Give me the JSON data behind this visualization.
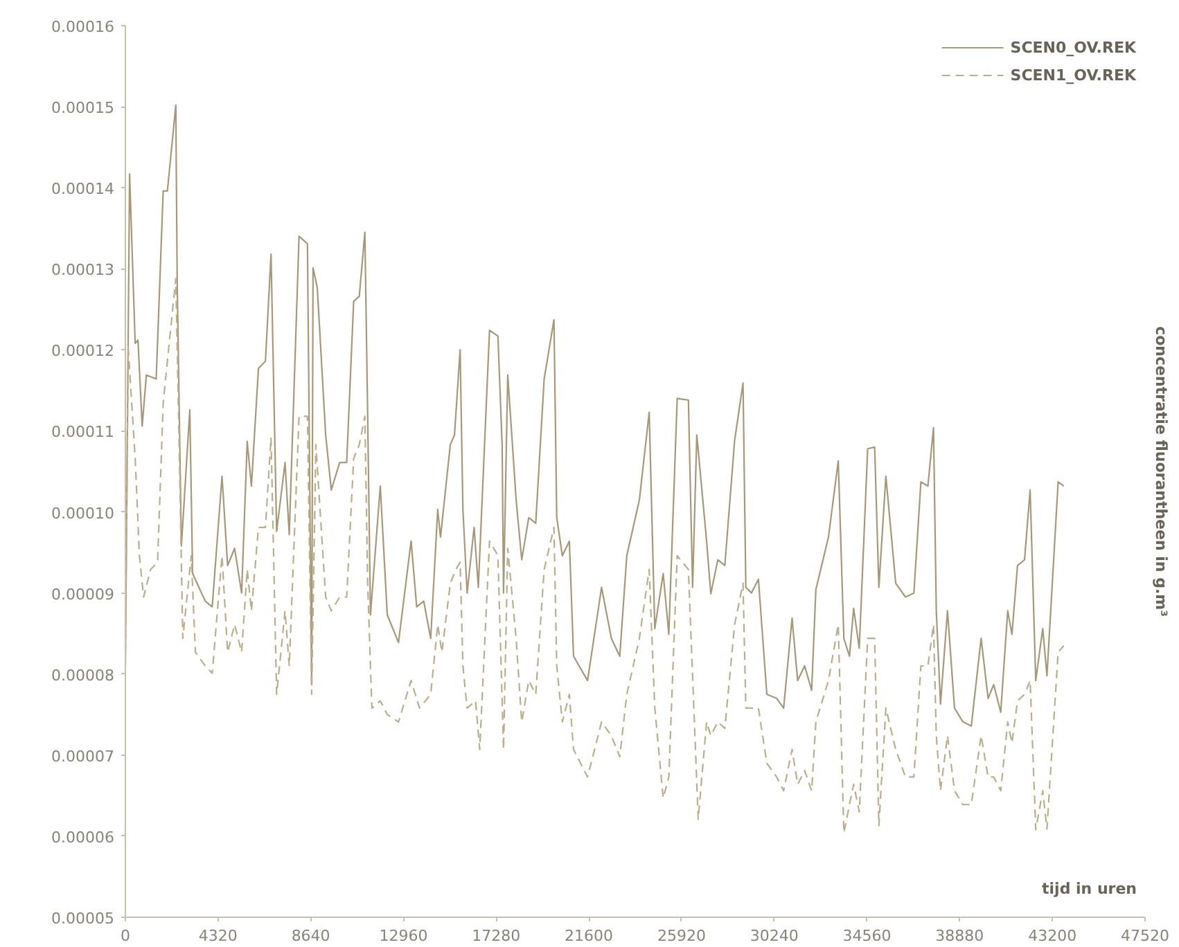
{
  "chart_data": {
    "type": "line",
    "xlabel": "tijd in uren",
    "ylabel": "concentratie fluorantheen in g.m³",
    "xlim": [
      0,
      47520
    ],
    "xticks": [
      0,
      4320,
      8640,
      12960,
      17280,
      21600,
      25920,
      30240,
      34560,
      38880,
      43200,
      47520
    ],
    "ylim": [
      5e-05,
      0.00016
    ],
    "yticks": [
      {
        "value": 5e-05,
        "label": "0.00005"
      },
      {
        "value": 6e-05,
        "label": "0.00006"
      },
      {
        "value": 7e-05,
        "label": "0.00007"
      },
      {
        "value": 8e-05,
        "label": "0.00008"
      },
      {
        "value": 9e-05,
        "label": "0.00009"
      },
      {
        "value": 0.0001,
        "label": "0.00010"
      },
      {
        "value": 0.00011,
        "label": "0.00011"
      },
      {
        "value": 0.00012,
        "label": "0.00012"
      },
      {
        "value": 0.00013,
        "label": "0.00013"
      },
      {
        "value": 0.00014,
        "label": "0.00014"
      },
      {
        "value": 0.00015,
        "label": "0.00015"
      },
      {
        "value": 0.00016,
        "label": "0.00016"
      }
    ],
    "grid": false,
    "legend": "top right",
    "marker": "none",
    "series": [
      {
        "name": "SCEN0_OV.REK",
        "color": "#a89878",
        "line_style": "solid",
        "x": [
          0,
          196,
          457,
          587,
          783,
          979,
          1436,
          1762,
          1958,
          2350,
          2415,
          2611,
          3002,
          3133,
          3720,
          4047,
          4504,
          4765,
          5091,
          5417,
          5678,
          5874,
          6201,
          6527,
          6788,
          7049,
          7441,
          7637,
          8093,
          8485,
          8681,
          8746,
          8942,
          9334,
          9595,
          9986,
          10313,
          10639,
          10900,
          11161,
          11292,
          11422,
          11879,
          12205,
          12728,
          13315,
          13576,
          13903,
          14229,
          14555,
          14686,
          15143,
          15338,
          15600,
          15730,
          15926,
          16252,
          16448,
          16970,
          17362,
          17558,
          17623,
          17819,
          18210,
          18471,
          18798,
          19124,
          19516,
          19973,
          20103,
          20364,
          20691,
          20886,
          21539,
          22192,
          22649,
          23040,
          23367,
          23954,
          24411,
          24672,
          25064,
          25325,
          25716,
          26239,
          26434,
          26630,
          27087,
          27283,
          27609,
          27936,
          28392,
          28784,
          28915,
          29176,
          29502,
          29894,
          30351,
          30677,
          31069,
          31330,
          31656,
          31982,
          32178,
          32766,
          33222,
          33484,
          33745,
          33940,
          34201,
          34593,
          34919,
          35115,
          35442,
          35899,
          36355,
          36747,
          37073,
          37400,
          37661,
          37791,
          37987,
          38313,
          38640,
          39032,
          39423,
          39880,
          40206,
          40467,
          40794,
          41120,
          41316,
          41577,
          41903,
          42164,
          42426,
          42752,
          42948,
          43470,
          43731
        ],
        "values": [
          8.1e-05,
          0.0001417,
          0.0001208,
          0.0001212,
          0.0001106,
          0.0001169,
          0.0001164,
          0.0001396,
          0.0001396,
          0.0001502,
          0.0001283,
          9.58e-05,
          0.0001126,
          9.24e-05,
          8.9e-05,
          8.83e-05,
          0.0001044,
          9.34e-05,
          9.55e-05,
          9e-05,
          0.0001087,
          0.0001032,
          0.0001177,
          0.0001186,
          0.0001318,
          9.76e-05,
          0.0001061,
          9.72e-05,
          0.000134,
          0.0001331,
          7.87e-05,
          0.0001301,
          0.0001277,
          0.0001095,
          0.0001027,
          0.0001061,
          0.0001061,
          0.000126,
          0.0001266,
          0.0001345,
          0.0001118,
          8.73e-05,
          0.0001032,
          8.73e-05,
          8.39e-05,
          9.64e-05,
          8.83e-05,
          8.9e-05,
          8.44e-05,
          0.0001003,
          9.69e-05,
          0.0001083,
          0.0001095,
          0.00012,
          0.0001003,
          9e-05,
          9.81e-05,
          9.07e-05,
          0.0001224,
          0.0001217,
          0.0001083,
          9e-05,
          0.0001169,
          0.0001015,
          9.41e-05,
          9.93e-05,
          9.86e-05,
          0.0001164,
          0.0001237,
          9.93e-05,
          9.46e-05,
          9.64e-05,
          8.22e-05,
          7.92e-05,
          9.07e-05,
          8.44e-05,
          8.22e-05,
          9.46e-05,
          0.0001015,
          0.0001123,
          8.56e-05,
          9.24e-05,
          8.49e-05,
          0.000114,
          0.0001138,
          9.07e-05,
          0.0001095,
          9.64e-05,
          8.99e-05,
          9.41e-05,
          9.34e-05,
          0.0001088,
          0.0001159,
          9.07e-05,
          9e-05,
          9.17e-05,
          7.75e-05,
          7.7e-05,
          7.58e-05,
          8.69e-05,
          7.92e-05,
          8.1e-05,
          7.8e-05,
          9.04e-05,
          9.69e-05,
          0.0001063,
          8.44e-05,
          8.22e-05,
          8.81e-05,
          8.32e-05,
          0.0001078,
          0.000108,
          9.07e-05,
          0.0001044,
          9.12e-05,
          8.95e-05,
          9e-05,
          0.0001037,
          0.0001032,
          0.0001104,
          8.78e-05,
          7.63e-05,
          8.78e-05,
          7.58e-05,
          7.41e-05,
          7.36e-05,
          8.44e-05,
          7.7e-05,
          7.87e-05,
          7.53e-05,
          8.78e-05,
          8.49e-05,
          9.34e-05,
          9.41e-05,
          0.0001027,
          7.92e-05,
          8.56e-05,
          7.98e-05,
          0.0001037,
          0.0001032
        ]
      },
      {
        "name": "SCEN1_OV.REK",
        "color": "#bcae88",
        "line_style": "dashed",
        "x": [
          0,
          131,
          457,
          653,
          849,
          1175,
          1501,
          1762,
          2089,
          2350,
          2480,
          2676,
          3068,
          3264,
          3720,
          4047,
          4504,
          4765,
          5091,
          5417,
          5678,
          5874,
          6201,
          6527,
          6788,
          7049,
          7441,
          7637,
          8093,
          8485,
          8681,
          8877,
          9334,
          9595,
          9986,
          10313,
          10639,
          10900,
          11161,
          11292,
          11488,
          11879,
          12205,
          12728,
          13315,
          13707,
          14229,
          14555,
          14751,
          15143,
          15404,
          15600,
          15730,
          15926,
          16318,
          16513,
          16970,
          17362,
          17623,
          17819,
          18210,
          18471,
          18798,
          19124,
          19516,
          19973,
          20103,
          20364,
          20691,
          20886,
          21539,
          22192,
          22649,
          23040,
          23367,
          23954,
          24411,
          24672,
          25064,
          25325,
          25716,
          26239,
          26695,
          27087,
          27283,
          27609,
          27936,
          28392,
          28784,
          28915,
          29176,
          29502,
          29894,
          30351,
          30677,
          31069,
          31330,
          31656,
          31982,
          32178,
          32766,
          33222,
          33484,
          33745,
          33940,
          34201,
          34593,
          34919,
          35115,
          35442,
          35899,
          36355,
          36747,
          37073,
          37400,
          37661,
          37791,
          37987,
          38313,
          38640,
          39032,
          39423,
          39880,
          40206,
          40467,
          40794,
          41120,
          41316,
          41577,
          41903,
          42164,
          42426,
          42752,
          42948,
          43470,
          43731
        ],
        "values": [
          8.1e-05,
          0.0001203,
          0.0001066,
          9.46e-05,
          8.95e-05,
          9.29e-05,
          9.38e-05,
          0.0001135,
          0.000122,
          0.0001288,
          0.0001118,
          8.44e-05,
          9.46e-05,
          8.27e-05,
          8.1e-05,
          8.01e-05,
          9.46e-05,
          8.27e-05,
          8.61e-05,
          8.27e-05,
          9.29e-05,
          8.78e-05,
          9.81e-05,
          9.81e-05,
          0.0001092,
          7.75e-05,
          8.78e-05,
          8.1e-05,
          0.0001118,
          0.0001118,
          7.75e-05,
          0.0001083,
          8.95e-05,
          8.78e-05,
          8.95e-05,
          8.95e-05,
          0.0001066,
          0.0001083,
          0.0001118,
          9.12e-05,
          7.58e-05,
          7.67e-05,
          7.5e-05,
          7.41e-05,
          7.92e-05,
          7.58e-05,
          7.75e-05,
          8.61e-05,
          8.27e-05,
          9.12e-05,
          9.29e-05,
          9.38e-05,
          8.1e-05,
          7.58e-05,
          7.67e-05,
          7.07e-05,
          9.64e-05,
          9.46e-05,
          7.07e-05,
          9.55e-05,
          8.44e-05,
          7.41e-05,
          7.92e-05,
          7.75e-05,
          9.29e-05,
          9.81e-05,
          8.1e-05,
          7.41e-05,
          7.75e-05,
          7.07e-05,
          6.73e-05,
          7.41e-05,
          7.24e-05,
          6.98e-05,
          7.75e-05,
          8.44e-05,
          9.29e-05,
          7.58e-05,
          6.47e-05,
          6.73e-05,
          9.46e-05,
          9.29e-05,
          6.21e-05,
          7.41e-05,
          7.24e-05,
          7.41e-05,
          7.33e-05,
          8.61e-05,
          9.12e-05,
          7.58e-05,
          7.58e-05,
          7.58e-05,
          6.9e-05,
          6.73e-05,
          6.56e-05,
          7.07e-05,
          6.64e-05,
          6.81e-05,
          6.56e-05,
          7.41e-05,
          7.92e-05,
          8.61e-05,
          6.04e-05,
          6.39e-05,
          6.64e-05,
          6.3e-05,
          8.44e-05,
          8.44e-05,
          6.13e-05,
          7.58e-05,
          7.07e-05,
          6.73e-05,
          6.73e-05,
          8.1e-05,
          8.1e-05,
          8.61e-05,
          7.24e-05,
          6.56e-05,
          7.24e-05,
          6.56e-05,
          6.39e-05,
          6.39e-05,
          7.24e-05,
          6.73e-05,
          6.73e-05,
          6.56e-05,
          7.41e-05,
          7.15e-05,
          7.67e-05,
          7.75e-05,
          7.92e-05,
          6.08e-05,
          6.56e-05,
          6.09e-05,
          8.27e-05,
          8.35e-05
        ]
      }
    ]
  }
}
